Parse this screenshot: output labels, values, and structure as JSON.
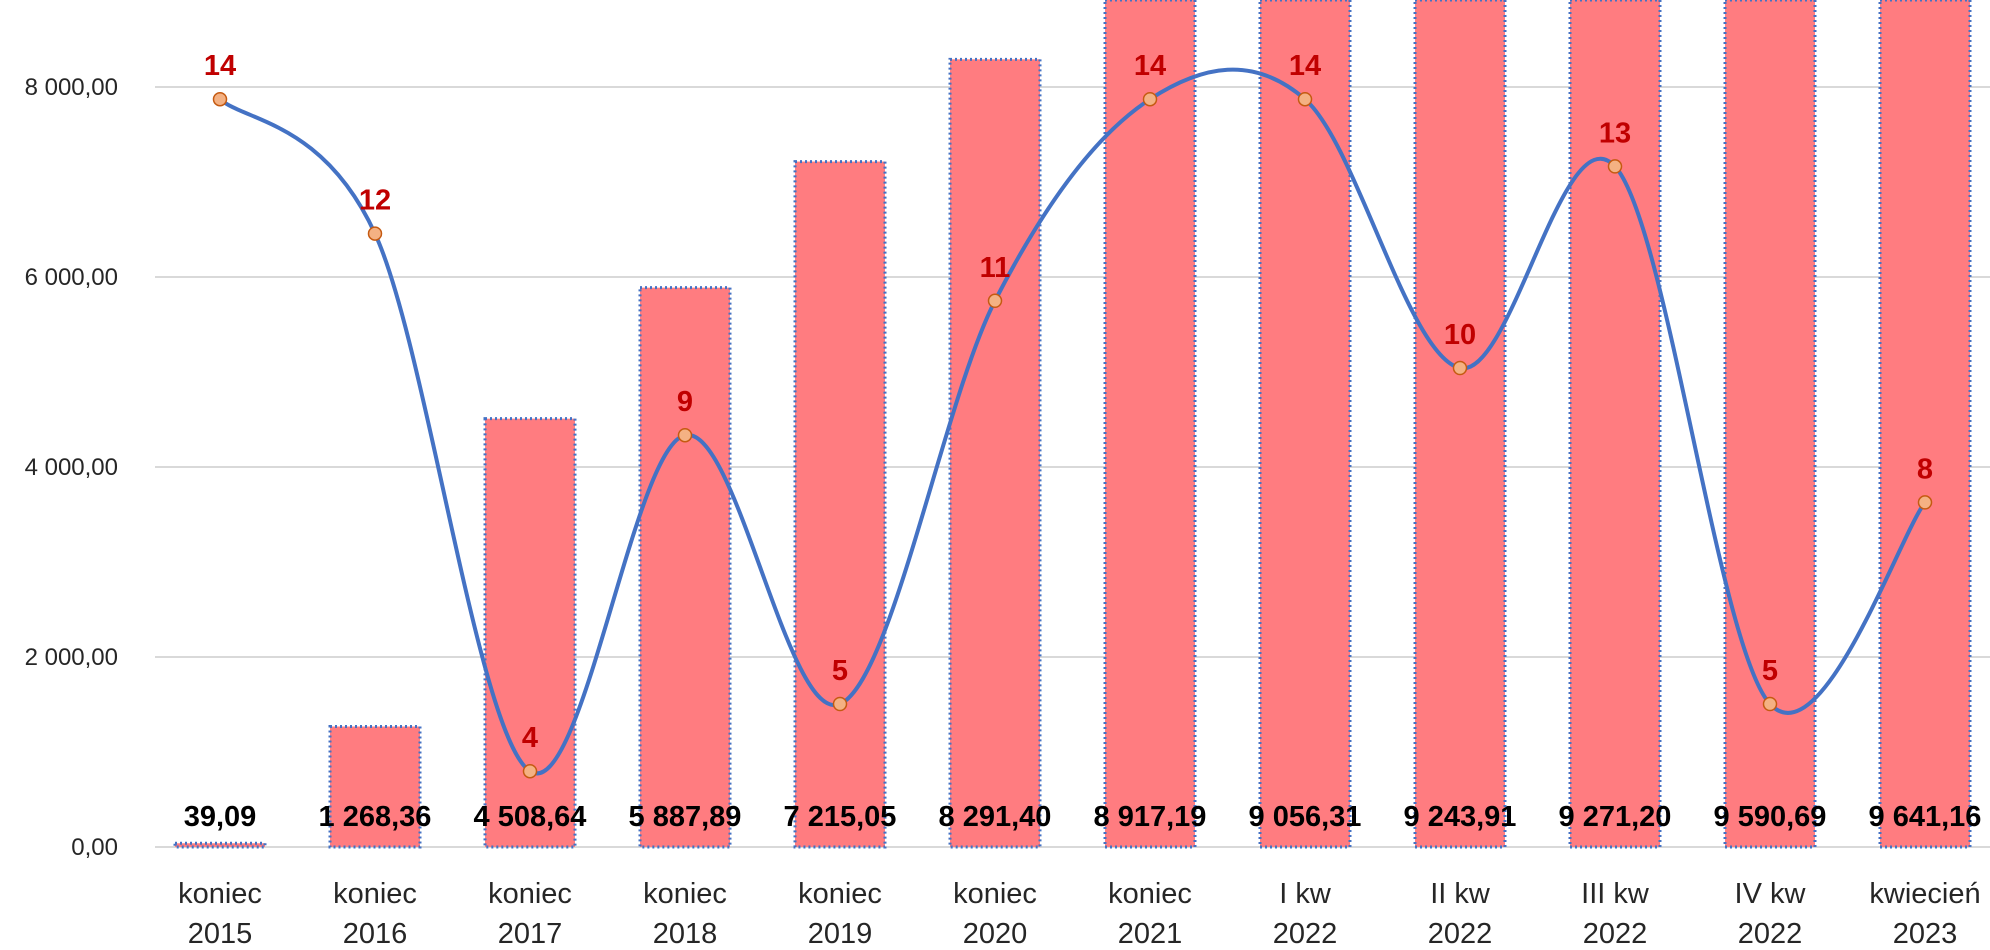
{
  "chart_data": {
    "type": "bar",
    "categories": [
      [
        "koniec",
        "2015"
      ],
      [
        "koniec",
        "2016"
      ],
      [
        "koniec",
        "2017"
      ],
      [
        "koniec",
        "2018"
      ],
      [
        "koniec",
        "2019"
      ],
      [
        "koniec",
        "2020"
      ],
      [
        "koniec",
        "2021"
      ],
      [
        "I kw",
        "2022"
      ],
      [
        "II kw",
        "2022"
      ],
      [
        "III kw",
        "2022"
      ],
      [
        "IV kw",
        "2022"
      ],
      [
        "kwiecień",
        "2023"
      ]
    ],
    "y_ticks": [
      "0,00",
      "2 000,00",
      "4 000,00",
      "6 000,00",
      "8 000,00"
    ],
    "ylim": [
      0,
      8900
    ],
    "grid": true,
    "series": [
      {
        "type": "bar",
        "values": [
          39.09,
          1268.36,
          4508.64,
          5887.89,
          7215.05,
          8291.4,
          8917.19,
          9056.31,
          9243.91,
          9271.2,
          9590.69,
          9641.16
        ],
        "data_labels": [
          "39,09",
          "1 268,36",
          "4 508,64",
          "5 887,89",
          "7 215,05",
          "8 291,40",
          "8 917,19",
          "9 056,31",
          "9 243,91",
          "9 271,20",
          "9 590,69",
          "9 641,16"
        ],
        "color": "#ff7c80",
        "border_color": "#4472c4"
      },
      {
        "type": "line",
        "smooth": true,
        "values": [
          14,
          12,
          4,
          9,
          5,
          11,
          14,
          14,
          10,
          13,
          5,
          8
        ],
        "data_labels": [
          "14",
          "12",
          "4",
          "9",
          "5",
          "11",
          "14",
          "14",
          "10",
          "13",
          "5",
          "8"
        ],
        "line_color": "#4472c4",
        "marker_color": "#f4b183",
        "label_color": "#c00000"
      }
    ]
  }
}
